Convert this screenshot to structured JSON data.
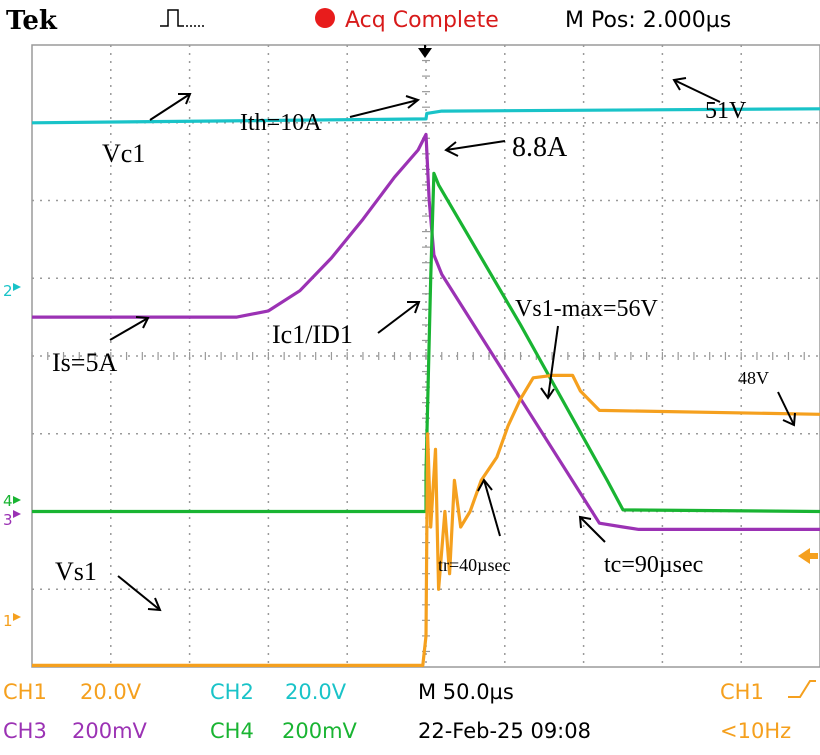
{
  "header": {
    "brand": "Tek",
    "trigger_icon": "pulse-trigger-icon",
    "status": "Acq Complete",
    "mpos": "M Pos: 2.000µs",
    "status_dot_color": "#e81c1c"
  },
  "markers": {
    "ch1": "1",
    "ch2": "2",
    "ch3": "3",
    "ch4": "4"
  },
  "colors": {
    "ch1": "#f5a01e",
    "ch2": "#19c3c8",
    "ch3": "#9b32b4",
    "ch4": "#19b432",
    "grid": "#9a9a9a"
  },
  "annotations": {
    "vc1": "Vc1",
    "v51": "51V",
    "ith": "Ith=10A",
    "a88": "8.8A",
    "ic1_id1": "Ic1/ID1",
    "vs1max": "Vs1-max=56V",
    "is5a": "Is=5A",
    "v48": "48V",
    "vs1": "Vs1",
    "tr": "tr=40µsec",
    "tc": "tc=90µsec"
  },
  "footer": {
    "ch1_label": "CH1",
    "ch1_scale": "20.0V",
    "ch2_label": "CH2",
    "ch2_scale": "20.0V",
    "timebase": "M 50.0µs",
    "trig_source": "CH1",
    "ch3_label": "CH3",
    "ch3_scale": "200mV",
    "ch4_label": "CH4",
    "ch4_scale": "200mV",
    "datetime": "22-Feb-25 09:08",
    "freq": "<10Hz"
  },
  "chart_data": {
    "type": "line",
    "x_unit": "µs",
    "xlim": [
      -250,
      250
    ],
    "ylim": [
      -4,
      4
    ],
    "series": [
      {
        "channel": "CH2",
        "x": [
          -250,
          0,
          0,
          0.5,
          10,
          250
        ],
        "y": [
          3.0,
          3.05,
          3.05,
          3.12,
          3.15,
          3.18
        ]
      },
      {
        "channel": "CH3",
        "x": [
          -250,
          -120,
          -100,
          -80,
          -60,
          -40,
          -20,
          -5,
          0,
          2,
          5,
          10,
          60,
          110,
          125,
          135,
          250
        ],
        "y": [
          0.5,
          0.5,
          0.58,
          0.84,
          1.26,
          1.76,
          2.3,
          2.65,
          2.85,
          2.0,
          1.3,
          1.05,
          -0.55,
          -2.15,
          -2.2,
          -2.23,
          -2.23
        ]
      },
      {
        "channel": "CH4",
        "x": [
          -250,
          0,
          0,
          3,
          5,
          8,
          60,
          115,
          125,
          250
        ],
        "y": [
          -2.0,
          -2.0,
          -1.5,
          1.0,
          2.35,
          2.2,
          0.4,
          -1.6,
          -1.98,
          -2.0
        ]
      },
      {
        "channel": "CH1",
        "x": [
          -250,
          -2,
          0,
          1,
          3,
          6,
          8,
          12,
          15,
          18,
          22,
          28,
          35,
          45,
          52,
          60,
          68,
          80,
          90,
          93,
          98,
          110,
          250
        ],
        "y": [
          -3.98,
          -3.98,
          -3.6,
          -1.0,
          -2.2,
          -1.2,
          -3.0,
          -2.0,
          -2.8,
          -1.6,
          -2.2,
          -2.0,
          -1.6,
          -1.3,
          -0.9,
          -0.55,
          -0.28,
          -0.25,
          -0.25,
          -0.25,
          -0.45,
          -0.7,
          -0.75
        ]
      }
    ],
    "grid": true
  }
}
